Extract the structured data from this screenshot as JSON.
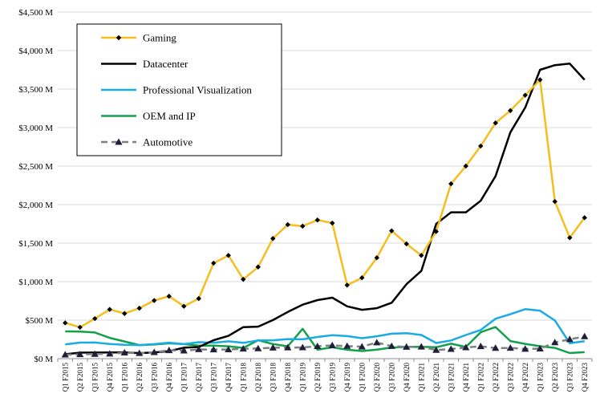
{
  "chart_data": {
    "type": "line",
    "title": "",
    "xlabel": "",
    "ylabel": "",
    "ylim": [
      0,
      4500
    ],
    "yticks": [
      0,
      500,
      1000,
      1500,
      2000,
      2500,
      3000,
      3500,
      4000,
      4500
    ],
    "ytick_labels": [
      "$0 M",
      "$500 M",
      "$1,000 M",
      "$1,500 M",
      "$2,000 M",
      "$2,500 M",
      "$3,000 M",
      "$3,500 M",
      "$4,000 M",
      "$4,500 M"
    ],
    "grid": "horizontal",
    "legend_position": "top-left",
    "categories": [
      "Q1 F2015",
      "Q2 F2015",
      "Q3 F2015",
      "Q4 F2015",
      "Q1 F2016",
      "Q2 F2016",
      "Q3 F2016",
      "Q4 F2016",
      "Q1 F2017",
      "Q2 F2017",
      "Q3 F2017",
      "Q4 F2017",
      "Q1 F2018",
      "Q2 F2018",
      "Q3 F2018",
      "Q4 F2018",
      "Q1 F2019",
      "Q2 F2019",
      "Q3 F2019",
      "Q4 F2019",
      "Q1 F2020",
      "Q2 F2020",
      "Q3 F2020",
      "Q4 F2020",
      "Q1 F2021",
      "Q2 F2021",
      "Q3 F2021",
      "Q4 F2021",
      "Q1 F2022",
      "Q2 F2022",
      "Q3 F2022",
      "Q4 F2022",
      "Q1 F2023",
      "Q2 F2023",
      "Q3 F2023",
      "Q4 F2023"
    ],
    "series": [
      {
        "name": "Gaming",
        "color": "#F5BE1E",
        "marker": "diamond",
        "dash": "",
        "width": 2.5,
        "values": [
          464,
          407,
          520,
          639,
          586,
          655,
          755,
          810,
          680,
          780,
          1240,
          1340,
          1030,
          1190,
          1560,
          1740,
          1720,
          1800,
          1760,
          954,
          1050,
          1310,
          1660,
          1490,
          1340,
          1650,
          2270,
          2500,
          2760,
          3060,
          3220,
          3420,
          3620,
          2040,
          1570,
          1830
        ]
      },
      {
        "name": "Datacenter",
        "color": "#000000",
        "marker": "none",
        "dash": "",
        "width": 2.5,
        "values": [
          57,
          78,
          79,
          80,
          82,
          72,
          80,
          98,
          143,
          151,
          240,
          296,
          409,
          416,
          501,
          606,
          701,
          760,
          792,
          679,
          634,
          655,
          726,
          968,
          1140,
          1750,
          1900,
          1900,
          2050,
          2370,
          2940,
          3260,
          3750,
          3810,
          3830,
          3620
        ]
      },
      {
        "name": "Professional Visualization",
        "color": "#1AABE3",
        "marker": "none",
        "dash": "",
        "width": 2.5,
        "values": [
          184,
          208,
          209,
          190,
          179,
          176,
          189,
          207,
          189,
          214,
          207,
          225,
          205,
          235,
          239,
          254,
          251,
          281,
          305,
          293,
          266,
          291,
          324,
          331,
          307,
          203,
          236,
          307,
          372,
          519,
          577,
          643,
          622,
          496,
          200,
          226
        ]
      },
      {
        "name": "OEM and IP",
        "color": "#13A04A",
        "marker": "none",
        "dash": "",
        "width": 2.5,
        "values": [
          354,
          352,
          340,
          270,
          223,
          176,
          183,
          199,
          189,
          170,
          170,
          160,
          140,
          240,
          190,
          160,
          387,
          116,
          148,
          116,
          99,
          118,
          145,
          152,
          153,
          148,
          194,
          152,
          343,
          410,
          228,
          192,
          161,
          140,
          73,
          84
        ]
      },
      {
        "name": "Automotive",
        "color": "#808080",
        "marker": "triangle",
        "dash": "8 5",
        "width": 2.5,
        "values": [
          52,
          55,
          60,
          63,
          78,
          71,
          83,
          108,
          104,
          120,
          118,
          119,
          128,
          132,
          142,
          144,
          145,
          161,
          172,
          163,
          155,
          209,
          162,
          152,
          155,
          111,
          125,
          145,
          160,
          138,
          139,
          126,
          130,
          210,
          251,
          288
        ]
      }
    ]
  }
}
